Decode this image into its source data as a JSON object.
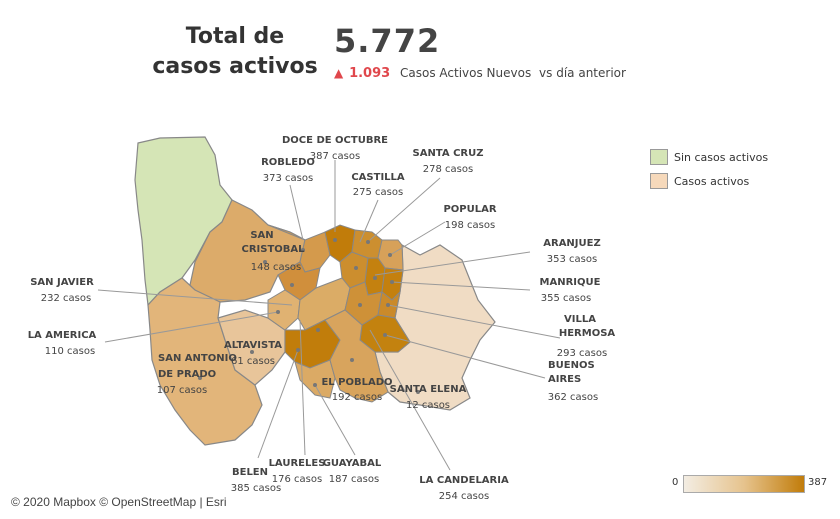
{
  "header": {
    "title_line1": "Total de",
    "title_line2": "casos activos",
    "total": "5.772",
    "delta_value": "1.093",
    "delta_text": "Casos Activos Nuevos",
    "delta_suffix": "vs día anterior",
    "delta_color": "#e0474c"
  },
  "legend": {
    "items": [
      {
        "label": "Sin casos activos",
        "color": "#d5e5b6"
      },
      {
        "label": "Casos activos",
        "color": "#f6d9bb"
      }
    ]
  },
  "colorbar": {
    "min": "0",
    "max": "387",
    "color_low": "#f3ede3",
    "color_high": "#c17c0a"
  },
  "attribution": "© 2020 Mapbox  © OpenStreetMap | Esri",
  "comunas": [
    {
      "name": "DOCE DE OCTUBRE",
      "cases": "387 casos",
      "value": 387
    },
    {
      "name": "ROBLEDO",
      "cases": "373 casos",
      "value": 373
    },
    {
      "name": "CASTILLA",
      "cases": "275 casos",
      "value": 275
    },
    {
      "name": "SANTA CRUZ",
      "cases": "278 casos",
      "value": 278
    },
    {
      "name": "POPULAR",
      "cases": "198 casos",
      "value": 198
    },
    {
      "name": "ARANJUEZ",
      "cases": "353 casos",
      "value": 353
    },
    {
      "name": "MANRIQUE",
      "cases": "355 casos",
      "value": 355
    },
    {
      "name": "VILLA HERMOSA",
      "cases": "293 casos",
      "value": 293
    },
    {
      "name": "BUENOS AIRES",
      "cases": "362 casos",
      "value": 362
    },
    {
      "name": "LA CANDELARIA",
      "cases": "254 casos",
      "value": 254
    },
    {
      "name": "GUAYABAL",
      "cases": "187 casos",
      "value": 187
    },
    {
      "name": "LAURELES",
      "cases": "176 casos",
      "value": 176
    },
    {
      "name": "BELEN",
      "cases": "385 casos",
      "value": 385
    },
    {
      "name": "EL POBLADO",
      "cases": "192 casos",
      "value": 192
    },
    {
      "name": "SANTA ELENA",
      "cases": "12 casos",
      "value": 12
    },
    {
      "name": "ALTAVISTA",
      "cases": "61 casos",
      "value": 61
    },
    {
      "name": "SAN ANTONIO DE PRADO",
      "cases": "107 casos",
      "value": 107
    },
    {
      "name": "LA AMERICA",
      "cases": "110 casos",
      "value": 110
    },
    {
      "name": "SAN JAVIER",
      "cases": "232 casos",
      "value": 232
    },
    {
      "name": "SAN CRISTOBAL",
      "cases": "148 casos",
      "value": 148
    }
  ]
}
